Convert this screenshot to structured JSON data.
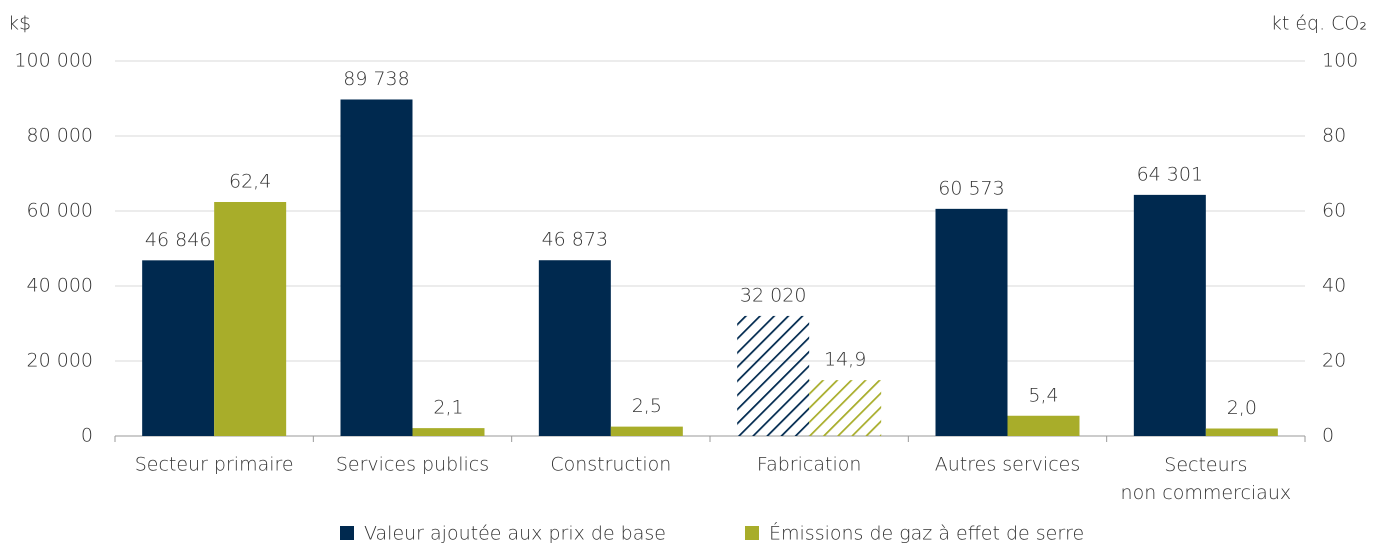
{
  "chart_data": {
    "type": "bar",
    "y_label": "k$",
    "y2_label": "kt éq. CO₂",
    "categories": [
      "Secteur primaire",
      "Services publics",
      "Construction",
      "Fabrication",
      "Autres services",
      "Secteurs non commerciaux"
    ],
    "series": [
      {
        "name": "Valeur ajoutée aux prix de base",
        "color": "#00294f",
        "values": [
          46846,
          89738,
          46873,
          32020,
          60573,
          64301
        ],
        "value_labels": [
          "46 846",
          "89 738",
          "46 873",
          "32 020",
          "60 573",
          "64 301"
        ]
      },
      {
        "name": "Émissions de gaz à effet de serre",
        "color": "#a8ad2a",
        "axis": "y2",
        "values": [
          62.4,
          2.1,
          2.5,
          14.9,
          5.4,
          2.0
        ],
        "value_labels": [
          "62,4",
          "2,1",
          "2,5",
          "14,9",
          "5,4",
          "2,0"
        ]
      }
    ],
    "hatched": [
      false,
      false,
      false,
      true,
      false,
      false
    ],
    "ylim": [
      0,
      100000
    ],
    "yticks": [
      0,
      {
        "value": 20000,
        "label": "20 000"
      },
      {
        "value": 40000,
        "label": "40 000"
      },
      {
        "value": 60000,
        "label": "60 000"
      },
      {
        "value": 80000,
        "label": "80 000"
      },
      {
        "value": 100000,
        "label": "100 000"
      }
    ],
    "y2lim": [
      0,
      100
    ],
    "y2ticks": [
      0,
      20,
      40,
      60,
      80,
      100
    ],
    "grid": true
  }
}
